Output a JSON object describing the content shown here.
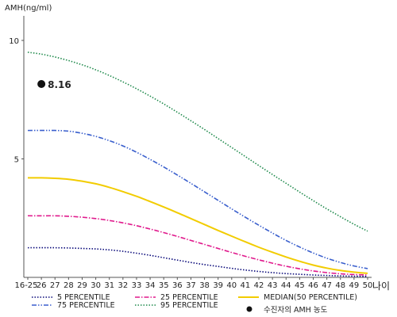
{
  "chart_data": {
    "type": "line",
    "title": "",
    "ylabel": "AMH(ng/ml)",
    "xlabel": "나이",
    "ylim": [
      0,
      11
    ],
    "yticks": [
      5,
      10
    ],
    "categories": [
      "16-25",
      "26",
      "27",
      "28",
      "29",
      "30",
      "31",
      "32",
      "33",
      "34",
      "35",
      "36",
      "37",
      "38",
      "39",
      "40",
      "41",
      "42",
      "43",
      "44",
      "45",
      "46",
      "47",
      "48",
      "49",
      "50"
    ],
    "grid": false,
    "legend_position": "bottom",
    "series": [
      {
        "name": "5 PERCENTILE",
        "color": "#0a0a7a",
        "dash": "dotted",
        "values": [
          1.25,
          1.25,
          1.25,
          1.24,
          1.22,
          1.2,
          1.16,
          1.1,
          1.02,
          0.93,
          0.83,
          0.73,
          0.63,
          0.54,
          0.46,
          0.38,
          0.31,
          0.25,
          0.2,
          0.16,
          0.13,
          0.1,
          0.08,
          0.06,
          0.05,
          0.04
        ]
      },
      {
        "name": "25 PERCENTILE",
        "color": "#e0198c",
        "dash": "dashdot",
        "values": [
          2.6,
          2.6,
          2.6,
          2.58,
          2.54,
          2.48,
          2.4,
          2.3,
          2.18,
          2.04,
          1.89,
          1.73,
          1.56,
          1.39,
          1.22,
          1.05,
          0.89,
          0.74,
          0.6,
          0.47,
          0.36,
          0.27,
          0.2,
          0.15,
          0.12,
          0.1
        ]
      },
      {
        "name": "MEDIAN(50 PERCENTILE)",
        "color": "#f2cc00",
        "dash": "solid",
        "values": [
          4.2,
          4.2,
          4.18,
          4.14,
          4.06,
          3.95,
          3.8,
          3.62,
          3.42,
          3.2,
          2.97,
          2.73,
          2.48,
          2.23,
          1.98,
          1.74,
          1.5,
          1.27,
          1.06,
          0.86,
          0.68,
          0.52,
          0.39,
          0.29,
          0.22,
          0.17
        ]
      },
      {
        "name": "75 PERCENTILE",
        "color": "#3a5fcd",
        "dash": "dashdotdot",
        "values": [
          6.2,
          6.2,
          6.2,
          6.17,
          6.08,
          5.95,
          5.77,
          5.55,
          5.28,
          4.98,
          4.66,
          4.32,
          3.97,
          3.61,
          3.25,
          2.89,
          2.54,
          2.2,
          1.87,
          1.56,
          1.28,
          1.03,
          0.81,
          0.63,
          0.48,
          0.37
        ]
      },
      {
        "name": "95 PERCENTILE",
        "color": "#1f8a4c",
        "dash": "dotted",
        "values": [
          9.5,
          9.42,
          9.3,
          9.15,
          8.97,
          8.76,
          8.52,
          8.25,
          7.96,
          7.65,
          7.32,
          6.97,
          6.61,
          6.24,
          5.86,
          5.48,
          5.1,
          4.72,
          4.34,
          3.97,
          3.6,
          3.24,
          2.89,
          2.56,
          2.24,
          1.95
        ]
      }
    ],
    "marker": {
      "label": "수진자의 AMH 농도",
      "x": "26",
      "y": 8.16,
      "value_label": "8.16",
      "color": "#111111"
    }
  }
}
